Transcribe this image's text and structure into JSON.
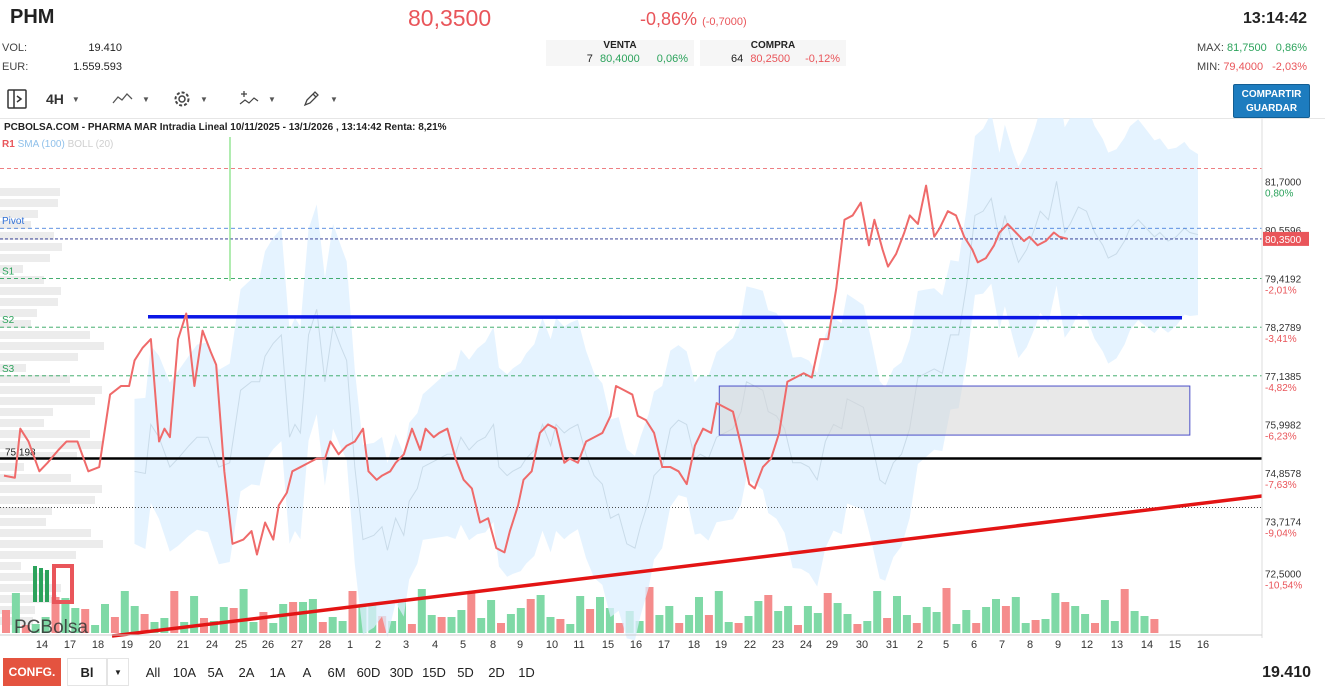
{
  "header": {
    "ticker": "PHM",
    "price": "80,3500",
    "change_pct": "-0,86%",
    "change_abs": "(-0,7000)",
    "time": "13:14:42",
    "vol_label": "VOL:",
    "vol_value": "19.410",
    "eur_label": "EUR:",
    "eur_value": "1.559.593",
    "venta_label": "VENTA",
    "venta_qty": "7",
    "venta_price": "80,4000",
    "venta_pct": "0,06%",
    "compra_label": "COMPRA",
    "compra_qty": "64",
    "compra_price": "80,2500",
    "compra_pct": "-0,12%",
    "max_label": "MAX:",
    "max_value": "81,7500",
    "max_pct": "0,86%",
    "min_label": "MIN:",
    "min_value": "79,4000",
    "min_pct": "-2,03%"
  },
  "toolbar": {
    "interval": "4H",
    "share_line1": "COMPARTIR",
    "share_line2": "GUARDAR",
    "icons": [
      "sidebar-toggle-icon",
      "line-chart-icon",
      "gear-icon",
      "indicators-icon",
      "pencil-icon"
    ]
  },
  "chart_data": {
    "type": "line",
    "title": "PCBOLSA.COM - PHARMA MAR Intradia Lineal 10/11/2025 - 13/1/2026 , 13:14:42 Renta: 8,21%",
    "indicators": [
      "SMA (100)",
      "BOLL (20)"
    ],
    "x_ticks": [
      "14",
      "17",
      "18",
      "19",
      "20",
      "21",
      "24",
      "25",
      "26",
      "27",
      "28",
      "1",
      "2",
      "3",
      "4",
      "5",
      "8",
      "9",
      "10",
      "11",
      "15",
      "16",
      "17",
      "18",
      "19",
      "22",
      "23",
      "24",
      "29",
      "30",
      "31",
      "2",
      "5",
      "6",
      "7",
      "8",
      "9",
      "12",
      "13",
      "14",
      "15",
      "16"
    ],
    "y_ticks": [
      {
        "value": "81,7000",
        "pct": "0,80%"
      },
      {
        "value": "80,5596",
        "pct": ""
      },
      {
        "value": "79,4192",
        "pct": "-2,01%"
      },
      {
        "value": "78,2789",
        "pct": "-3,41%"
      },
      {
        "value": "77,1385",
        "pct": "-4,82%"
      },
      {
        "value": "75,9982",
        "pct": "-6,23%"
      },
      {
        "value": "74,8578",
        "pct": "-7,63%"
      },
      {
        "value": "73,7174",
        "pct": "-9,04%"
      },
      {
        "value": "72,5000",
        "pct": "-10,54%"
      }
    ],
    "ylim": [
      72.0,
      82.2
    ],
    "levels": [
      {
        "name": "R1",
        "value": 82.0,
        "color": "#e9555a"
      },
      {
        "name": "Pivot",
        "value": 80.6,
        "color": "#2f6fd6"
      },
      {
        "name": "S1",
        "value": 79.42,
        "color": "#2ca35c"
      },
      {
        "name": "S2",
        "value": 78.28,
        "color": "#2ca35c"
      },
      {
        "name": "S3",
        "value": 77.14,
        "color": "#2ca35c"
      }
    ],
    "current": {
      "value": 80.35,
      "label": "80,3500"
    },
    "support_label": "75,198",
    "support_value": 75.2,
    "resistance_value": 78.5,
    "dotted_value": 74.05,
    "trendline": {
      "from": [
        0,
        71.7
      ],
      "to": [
        42.3,
        74.6
      ]
    },
    "rect": {
      "x0": 24.9,
      "x1": 42.2,
      "y0": 75.75,
      "y1": 76.9
    },
    "series": [
      {
        "name": "price",
        "x": [
          0,
          0.4,
          0.6,
          0.9,
          1.3,
          1.6,
          2.0,
          2.3,
          2.7,
          3.1,
          3.5,
          3.9,
          4.3,
          4.6,
          4.8,
          5.1,
          5.4,
          5.7,
          5.9,
          6.1,
          6.4,
          6.7,
          7.0,
          7.3,
          7.6,
          7.8,
          8.1,
          8.4,
          8.8,
          9.1,
          9.3,
          9.6,
          9.9,
          10.1,
          10.4,
          10.6,
          10.9,
          11.2,
          11.5,
          11.8,
          12.0,
          12.3,
          12.6,
          12.9,
          13.2,
          13.4,
          13.7,
          13.9,
          14.2,
          14.4,
          14.7,
          15.0,
          15.3,
          15.5,
          15.8,
          16.0,
          16.3,
          16.6,
          16.9,
          17.2,
          17.5,
          17.8,
          18.1,
          18.4,
          18.6,
          18.9,
          19.1,
          19.4,
          19.7,
          20.0,
          20.3,
          20.6,
          20.8,
          21.1,
          21.4,
          21.7,
          22.0,
          22.3,
          22.5,
          22.8,
          23.1,
          23.3,
          23.6,
          23.9,
          24.2,
          24.5,
          24.8,
          25.1,
          25.4,
          25.7,
          26.0,
          26.2,
          26.5,
          26.8,
          27.1,
          27.4,
          27.6,
          27.9,
          28.2,
          28.5,
          28.8,
          29.1,
          29.4,
          29.7,
          30.0,
          30.3,
          30.6,
          30.9,
          31.2,
          31.5,
          31.8,
          32.0,
          32.3,
          32.5,
          32.8,
          33.1,
          33.3,
          33.6,
          33.9,
          34.2,
          34.4,
          34.7,
          35.0,
          35.3,
          35.6,
          35.8,
          36.1,
          36.4,
          36.6,
          36.9,
          37.2,
          37.5,
          37.7,
          38.0,
          38.3,
          38.6,
          38.8,
          39.1
        ],
        "y": [
          74.8,
          74.75,
          75.9,
          75.6,
          74.9,
          75.1,
          75.4,
          75.6,
          75.6,
          74.9,
          75.0,
          76.7,
          76.9,
          76.9,
          77.5,
          77.8,
          78.0,
          75.6,
          75.9,
          75.7,
          78.0,
          78.6,
          76.9,
          78.2,
          77.7,
          77.4,
          74.9,
          73.2,
          73.3,
          73.5,
          72.95,
          73.7,
          73.3,
          74.1,
          74.4,
          74.9,
          75.0,
          75.1,
          75.2,
          75.2,
          75.6,
          75.3,
          75.5,
          75.6,
          75.9,
          74.9,
          74.7,
          74.8,
          74.9,
          75.1,
          75.3,
          75.9,
          75.4,
          75.9,
          75.7,
          75.8,
          75.9,
          75.2,
          74.7,
          74.5,
          73.7,
          73.8,
          73.1,
          73.0,
          73.5,
          74.1,
          74.7,
          74.9,
          75.8,
          76.0,
          75.9,
          75.1,
          75.2,
          75.1,
          75.6,
          75.7,
          75.8,
          76.2,
          76.9,
          76.8,
          76.7,
          76.2,
          76.1,
          75.8,
          75.0,
          75.0,
          74.9,
          74.6,
          75.5,
          75.9,
          75.8,
          76.5,
          76.4,
          76.3,
          75.5,
          74.6,
          74.5,
          75.0,
          75.2,
          75.8,
          77.0,
          77.1,
          77.2,
          77.1,
          78.0,
          78.0,
          79.2,
          80.8,
          80.9,
          81.2,
          80.2,
          80.8,
          80.1,
          79.7,
          80.0,
          80.5,
          80.9,
          80.7,
          81.6,
          80.4,
          80.6,
          81.0,
          80.9,
          80.4,
          80.1,
          79.8,
          79.9,
          80.2,
          80.5,
          80.7,
          80.5,
          80.3,
          80.4,
          80.2,
          80.3,
          80.5,
          80.4,
          80.35
        ]
      }
    ],
    "volume_bars": 118,
    "watermark": "PCBolsa"
  },
  "bottom": {
    "confg": "CONFG.",
    "mode": "Bl",
    "ranges": [
      "All",
      "10A",
      "5A",
      "2A",
      "1A",
      "A",
      "6M",
      "60D",
      "30D",
      "15D",
      "5D",
      "2D",
      "1D"
    ],
    "volume": "19.410"
  }
}
